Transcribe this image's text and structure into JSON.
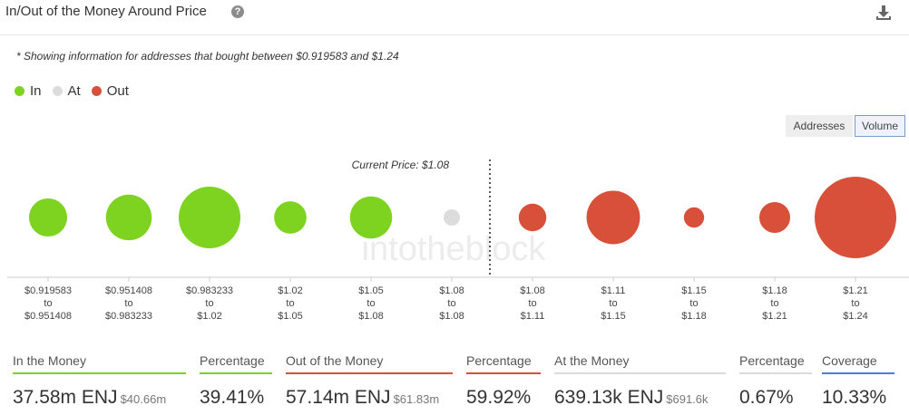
{
  "header": {
    "title": "In/Out of the Money Around Price",
    "help_icon": "question-circle-icon",
    "download_icon": "download-icon"
  },
  "note": "* Showing information for addresses that bought between $0.919583 and $1.24",
  "legend": [
    {
      "label": "In",
      "color": "#7ed321"
    },
    {
      "label": "At",
      "color": "#dcdcdc"
    },
    {
      "label": "Out",
      "color": "#d9503a"
    }
  ],
  "toggles": {
    "addresses": "Addresses",
    "volume": "Volume"
  },
  "chart_data": {
    "type": "bubble",
    "annotation": "Current Price: $1.08",
    "watermark": "intotheblock",
    "categories": [
      [
        "$0.919583",
        "to",
        "$0.951408"
      ],
      [
        "$0.951408",
        "to",
        "$0.983233"
      ],
      [
        "$0.983233",
        "to",
        "$1.02"
      ],
      [
        "$1.02",
        "to",
        "$1.05"
      ],
      [
        "$1.05",
        "to",
        "$1.08"
      ],
      [
        "$1.08",
        "to",
        "$1.08"
      ],
      [
        "$1.08",
        "to",
        "$1.11"
      ],
      [
        "$1.11",
        "to",
        "$1.15"
      ],
      [
        "$1.15",
        "to",
        "$1.18"
      ],
      [
        "$1.18",
        "to",
        "$1.21"
      ],
      [
        "$1.21",
        "to",
        "$1.24"
      ]
    ],
    "status": [
      "in",
      "in",
      "in",
      "in",
      "in",
      "at",
      "out",
      "out",
      "out",
      "out",
      "out"
    ],
    "values": [
      4.6,
      6.6,
      12.0,
      3.3,
      5.6,
      0.64,
      2.4,
      9.0,
      1.3,
      3.0,
      21.0
    ],
    "value_unit": "relative volume (estimated)",
    "colors": {
      "in": "#7ed321",
      "at": "#dcdcdc",
      "out": "#d9503a"
    }
  },
  "stats": [
    {
      "label": "In the Money",
      "value": "37.58m ENJ",
      "sub": "$40.66m",
      "color": "#7ed321"
    },
    {
      "label": "Percentage",
      "value": "39.41%",
      "sub": "",
      "color": "#7ed321"
    },
    {
      "label": "Out of the Money",
      "value": "57.14m ENJ",
      "sub": "$61.83m",
      "color": "#d9503a"
    },
    {
      "label": "Percentage",
      "value": "59.92%",
      "sub": "",
      "color": "#d9503a"
    },
    {
      "label": "At the Money",
      "value": "639.13k ENJ",
      "sub": "$691.6k",
      "color": "#dcdcdc"
    },
    {
      "label": "Percentage",
      "value": "0.67%",
      "sub": "",
      "color": "#dcdcdc"
    },
    {
      "label": "Coverage",
      "value": "10.33%",
      "sub": "",
      "color": "#4a7fd4"
    }
  ]
}
